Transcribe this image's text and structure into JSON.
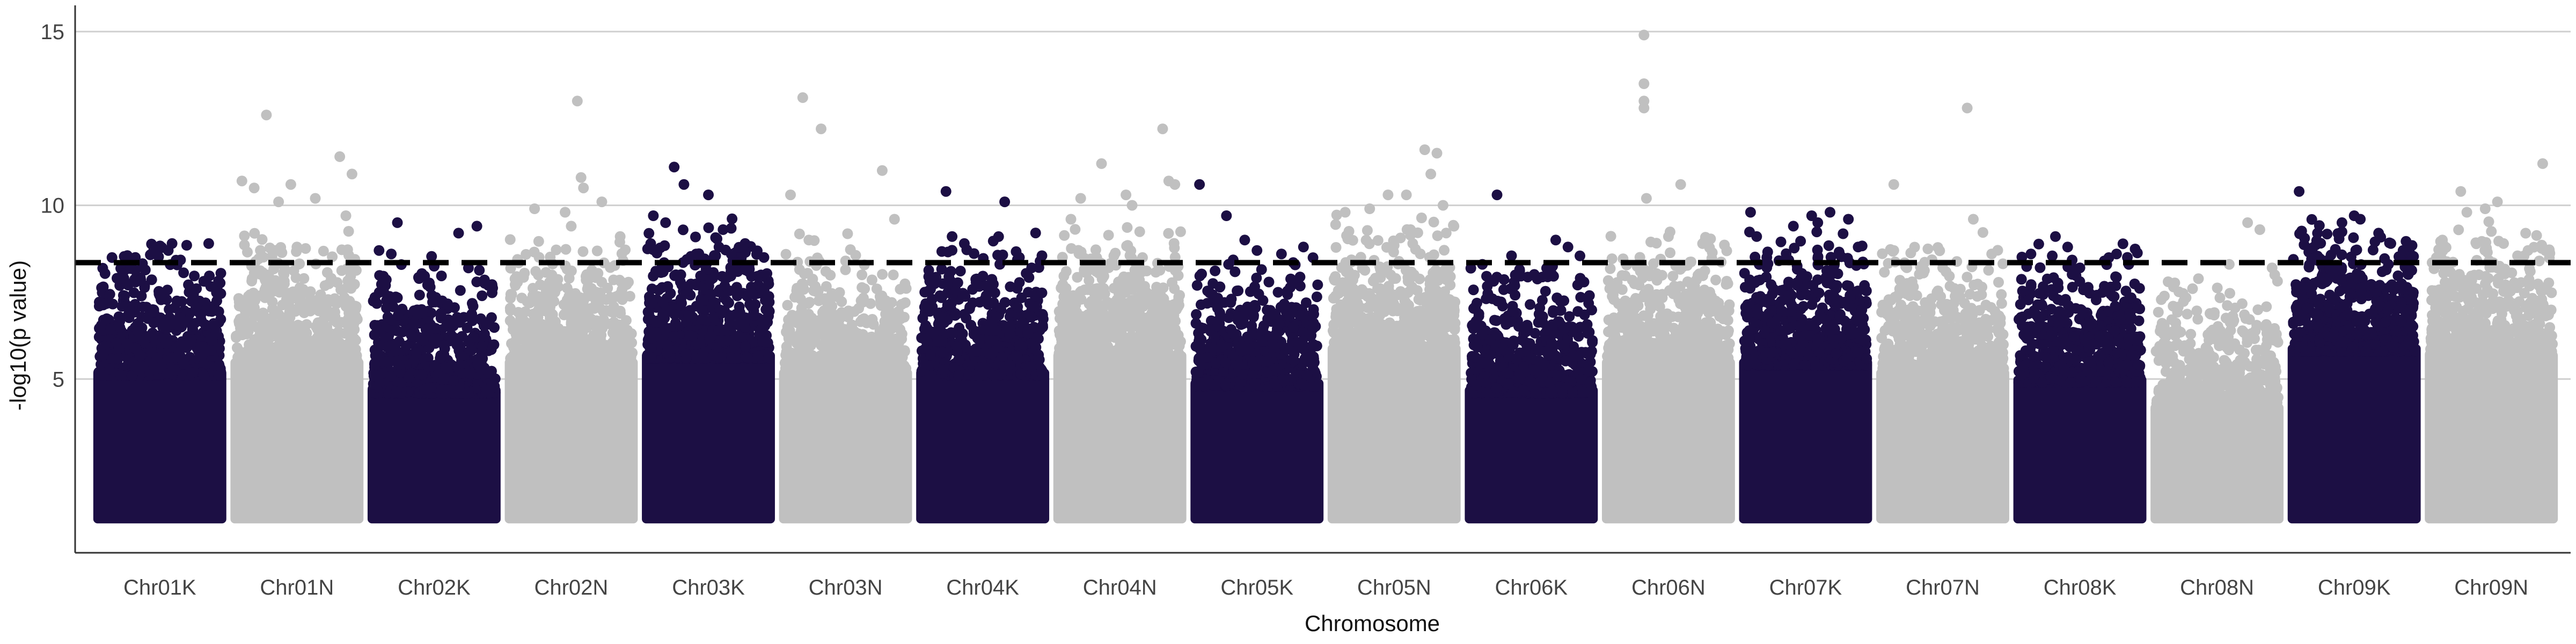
{
  "chart_data": {
    "type": "scatter",
    "title": "",
    "xlabel": "Chromosome",
    "ylabel": "-log10(p value)",
    "ylim": [
      0,
      15.6
    ],
    "yticks": [
      5,
      10,
      15
    ],
    "grid": "horizontal-major",
    "threshold": 8.35,
    "threshold_style": "dashed",
    "colors": {
      "dark": "#1c0f44",
      "light": "#c0c0c0"
    },
    "categories": [
      "Chr01K",
      "Chr01N",
      "Chr02K",
      "Chr02N",
      "Chr03K",
      "Chr03N",
      "Chr04K",
      "Chr04N",
      "Chr05K",
      "Chr05N",
      "Chr06K",
      "Chr06N",
      "Chr07K",
      "Chr07N",
      "Chr08K",
      "Chr08N",
      "Chr09K",
      "Chr09N"
    ],
    "series": [
      {
        "category": "Chr01K",
        "color": "dark",
        "min_value": 1.0,
        "dense_top": 6.5,
        "peaks": [
          [
            0.15,
            7.9
          ],
          [
            0.3,
            8.5
          ],
          [
            0.45,
            8.7
          ],
          [
            0.6,
            8.9
          ],
          [
            0.72,
            8.85
          ],
          [
            0.9,
            8.9
          ],
          [
            0.8,
            7.6
          ],
          [
            0.5,
            7.4
          ]
        ]
      },
      {
        "category": "Chr01N",
        "color": "light",
        "min_value": 1.0,
        "dense_top": 6.8,
        "peaks": [
          [
            0.05,
            10.7
          ],
          [
            0.15,
            10.5
          ],
          [
            0.25,
            12.6
          ],
          [
            0.35,
            10.1
          ],
          [
            0.45,
            10.6
          ],
          [
            0.65,
            10.2
          ],
          [
            0.85,
            11.4
          ],
          [
            0.9,
            9.7
          ],
          [
            0.95,
            10.9
          ],
          [
            0.5,
            8.8
          ]
        ]
      },
      {
        "category": "Chr02K",
        "color": "dark",
        "min_value": 1.0,
        "dense_top": 6.0,
        "peaks": [
          [
            0.05,
            8.7
          ],
          [
            0.15,
            8.6
          ],
          [
            0.2,
            9.5
          ],
          [
            0.1,
            7.8
          ],
          [
            0.7,
            9.2
          ],
          [
            0.85,
            9.4
          ],
          [
            0.4,
            6.9
          ]
        ]
      },
      {
        "category": "Chr02N",
        "color": "light",
        "min_value": 1.0,
        "dense_top": 6.8,
        "peaks": [
          [
            0.2,
            9.9
          ],
          [
            0.45,
            9.8
          ],
          [
            0.55,
            13.0
          ],
          [
            0.58,
            10.8
          ],
          [
            0.6,
            10.5
          ],
          [
            0.75,
            10.1
          ],
          [
            0.9,
            9.1
          ],
          [
            0.5,
            9.4
          ]
        ]
      },
      {
        "category": "Chr03K",
        "color": "dark",
        "min_value": 1.0,
        "dense_top": 7.0,
        "peaks": [
          [
            0.05,
            9.7
          ],
          [
            0.15,
            9.5
          ],
          [
            0.22,
            11.1
          ],
          [
            0.3,
            10.6
          ],
          [
            0.5,
            10.3
          ],
          [
            0.62,
            9.3
          ],
          [
            0.8,
            8.9
          ],
          [
            0.4,
            8.6
          ]
        ]
      },
      {
        "category": "Chr03N",
        "color": "light",
        "min_value": 1.0,
        "dense_top": 6.5,
        "peaks": [
          [
            0.05,
            10.3
          ],
          [
            0.15,
            13.1
          ],
          [
            0.3,
            12.2
          ],
          [
            0.2,
            9.0
          ],
          [
            0.8,
            11.0
          ],
          [
            0.9,
            9.6
          ],
          [
            0.5,
            8.4
          ]
        ]
      },
      {
        "category": "Chr04K",
        "color": "dark",
        "min_value": 1.0,
        "dense_top": 6.5,
        "peaks": [
          [
            0.2,
            10.4
          ],
          [
            0.25,
            9.1
          ],
          [
            0.35,
            8.9
          ],
          [
            0.68,
            10.1
          ],
          [
            0.8,
            8.5
          ],
          [
            0.9,
            8.2
          ]
        ]
      },
      {
        "category": "Chr04N",
        "color": "light",
        "min_value": 1.0,
        "dense_top": 7.0,
        "peaks": [
          [
            0.1,
            9.6
          ],
          [
            0.18,
            10.2
          ],
          [
            0.35,
            11.2
          ],
          [
            0.55,
            10.3
          ],
          [
            0.6,
            10.0
          ],
          [
            0.85,
            12.2
          ],
          [
            0.9,
            10.7
          ],
          [
            0.95,
            10.6
          ]
        ]
      },
      {
        "category": "Chr05K",
        "color": "dark",
        "min_value": 1.0,
        "dense_top": 6.2,
        "peaks": [
          [
            0.03,
            10.6
          ],
          [
            0.25,
            9.7
          ],
          [
            0.4,
            9.0
          ],
          [
            0.5,
            8.7
          ],
          [
            0.7,
            8.6
          ],
          [
            0.88,
            8.8
          ]
        ]
      },
      {
        "category": "Chr05N",
        "color": "light",
        "min_value": 1.0,
        "dense_top": 7.2,
        "peaks": [
          [
            0.1,
            9.8
          ],
          [
            0.3,
            9.9
          ],
          [
            0.45,
            10.3
          ],
          [
            0.6,
            10.3
          ],
          [
            0.75,
            11.6
          ],
          [
            0.8,
            10.9
          ],
          [
            0.85,
            11.5
          ],
          [
            0.9,
            10.0
          ]
        ]
      },
      {
        "category": "Chr06K",
        "color": "dark",
        "min_value": 1.0,
        "dense_top": 6.0,
        "peaks": [
          [
            0.22,
            10.3
          ],
          [
            0.1,
            8.3
          ],
          [
            0.4,
            8.0
          ],
          [
            0.7,
            9.0
          ],
          [
            0.8,
            8.8
          ],
          [
            0.9,
            7.9
          ]
        ]
      },
      {
        "category": "Chr06N",
        "color": "light",
        "min_value": 1.0,
        "dense_top": 6.8,
        "peaks": [
          [
            0.3,
            14.9
          ],
          [
            0.3,
            13.5
          ],
          [
            0.3,
            13.0
          ],
          [
            0.3,
            12.8
          ],
          [
            0.32,
            10.2
          ],
          [
            0.6,
            10.6
          ],
          [
            0.8,
            9.0
          ],
          [
            0.5,
            9.1
          ]
        ]
      },
      {
        "category": "Chr07K",
        "color": "dark",
        "min_value": 1.0,
        "dense_top": 6.8,
        "peaks": [
          [
            0.05,
            9.8
          ],
          [
            0.1,
            9.1
          ],
          [
            0.4,
            9.4
          ],
          [
            0.55,
            9.7
          ],
          [
            0.6,
            9.5
          ],
          [
            0.7,
            9.8
          ],
          [
            0.85,
            9.6
          ],
          [
            0.93,
            8.8
          ]
        ]
      },
      {
        "category": "Chr07N",
        "color": "light",
        "min_value": 1.0,
        "dense_top": 6.5,
        "peaks": [
          [
            0.1,
            10.6
          ],
          [
            0.1,
            8.7
          ],
          [
            0.7,
            12.8
          ],
          [
            0.75,
            9.6
          ],
          [
            0.9,
            8.6
          ],
          [
            0.5,
            8.2
          ]
        ]
      },
      {
        "category": "Chr08K",
        "color": "dark",
        "min_value": 1.0,
        "dense_top": 6.3,
        "peaks": [
          [
            0.1,
            8.6
          ],
          [
            0.3,
            9.1
          ],
          [
            0.4,
            8.8
          ],
          [
            0.5,
            8.2
          ],
          [
            0.7,
            8.4
          ],
          [
            0.8,
            8.6
          ],
          [
            0.9,
            8.3
          ]
        ]
      },
      {
        "category": "Chr08N",
        "color": "light",
        "min_value": 1.0,
        "dense_top": 5.5,
        "peaks": [
          [
            0.1,
            7.8
          ],
          [
            0.3,
            7.6
          ],
          [
            0.6,
            8.3
          ],
          [
            0.75,
            9.5
          ],
          [
            0.85,
            9.3
          ],
          [
            0.95,
            8.2
          ]
        ]
      },
      {
        "category": "Chr09K",
        "color": "dark",
        "min_value": 1.0,
        "dense_top": 7.2,
        "peaks": [
          [
            0.05,
            10.4
          ],
          [
            0.2,
            9.2
          ],
          [
            0.4,
            9.5
          ],
          [
            0.5,
            9.7
          ],
          [
            0.55,
            9.6
          ],
          [
            0.7,
            9.2
          ],
          [
            0.8,
            8.9
          ],
          [
            0.9,
            8.7
          ]
        ]
      },
      {
        "category": "Chr09N",
        "color": "light",
        "min_value": 1.0,
        "dense_top": 7.0,
        "peaks": [
          [
            0.1,
            9.0
          ],
          [
            0.25,
            10.4
          ],
          [
            0.3,
            9.8
          ],
          [
            0.45,
            9.9
          ],
          [
            0.55,
            10.1
          ],
          [
            0.6,
            8.9
          ],
          [
            0.92,
            11.2
          ],
          [
            0.8,
            8.7
          ]
        ]
      }
    ]
  }
}
